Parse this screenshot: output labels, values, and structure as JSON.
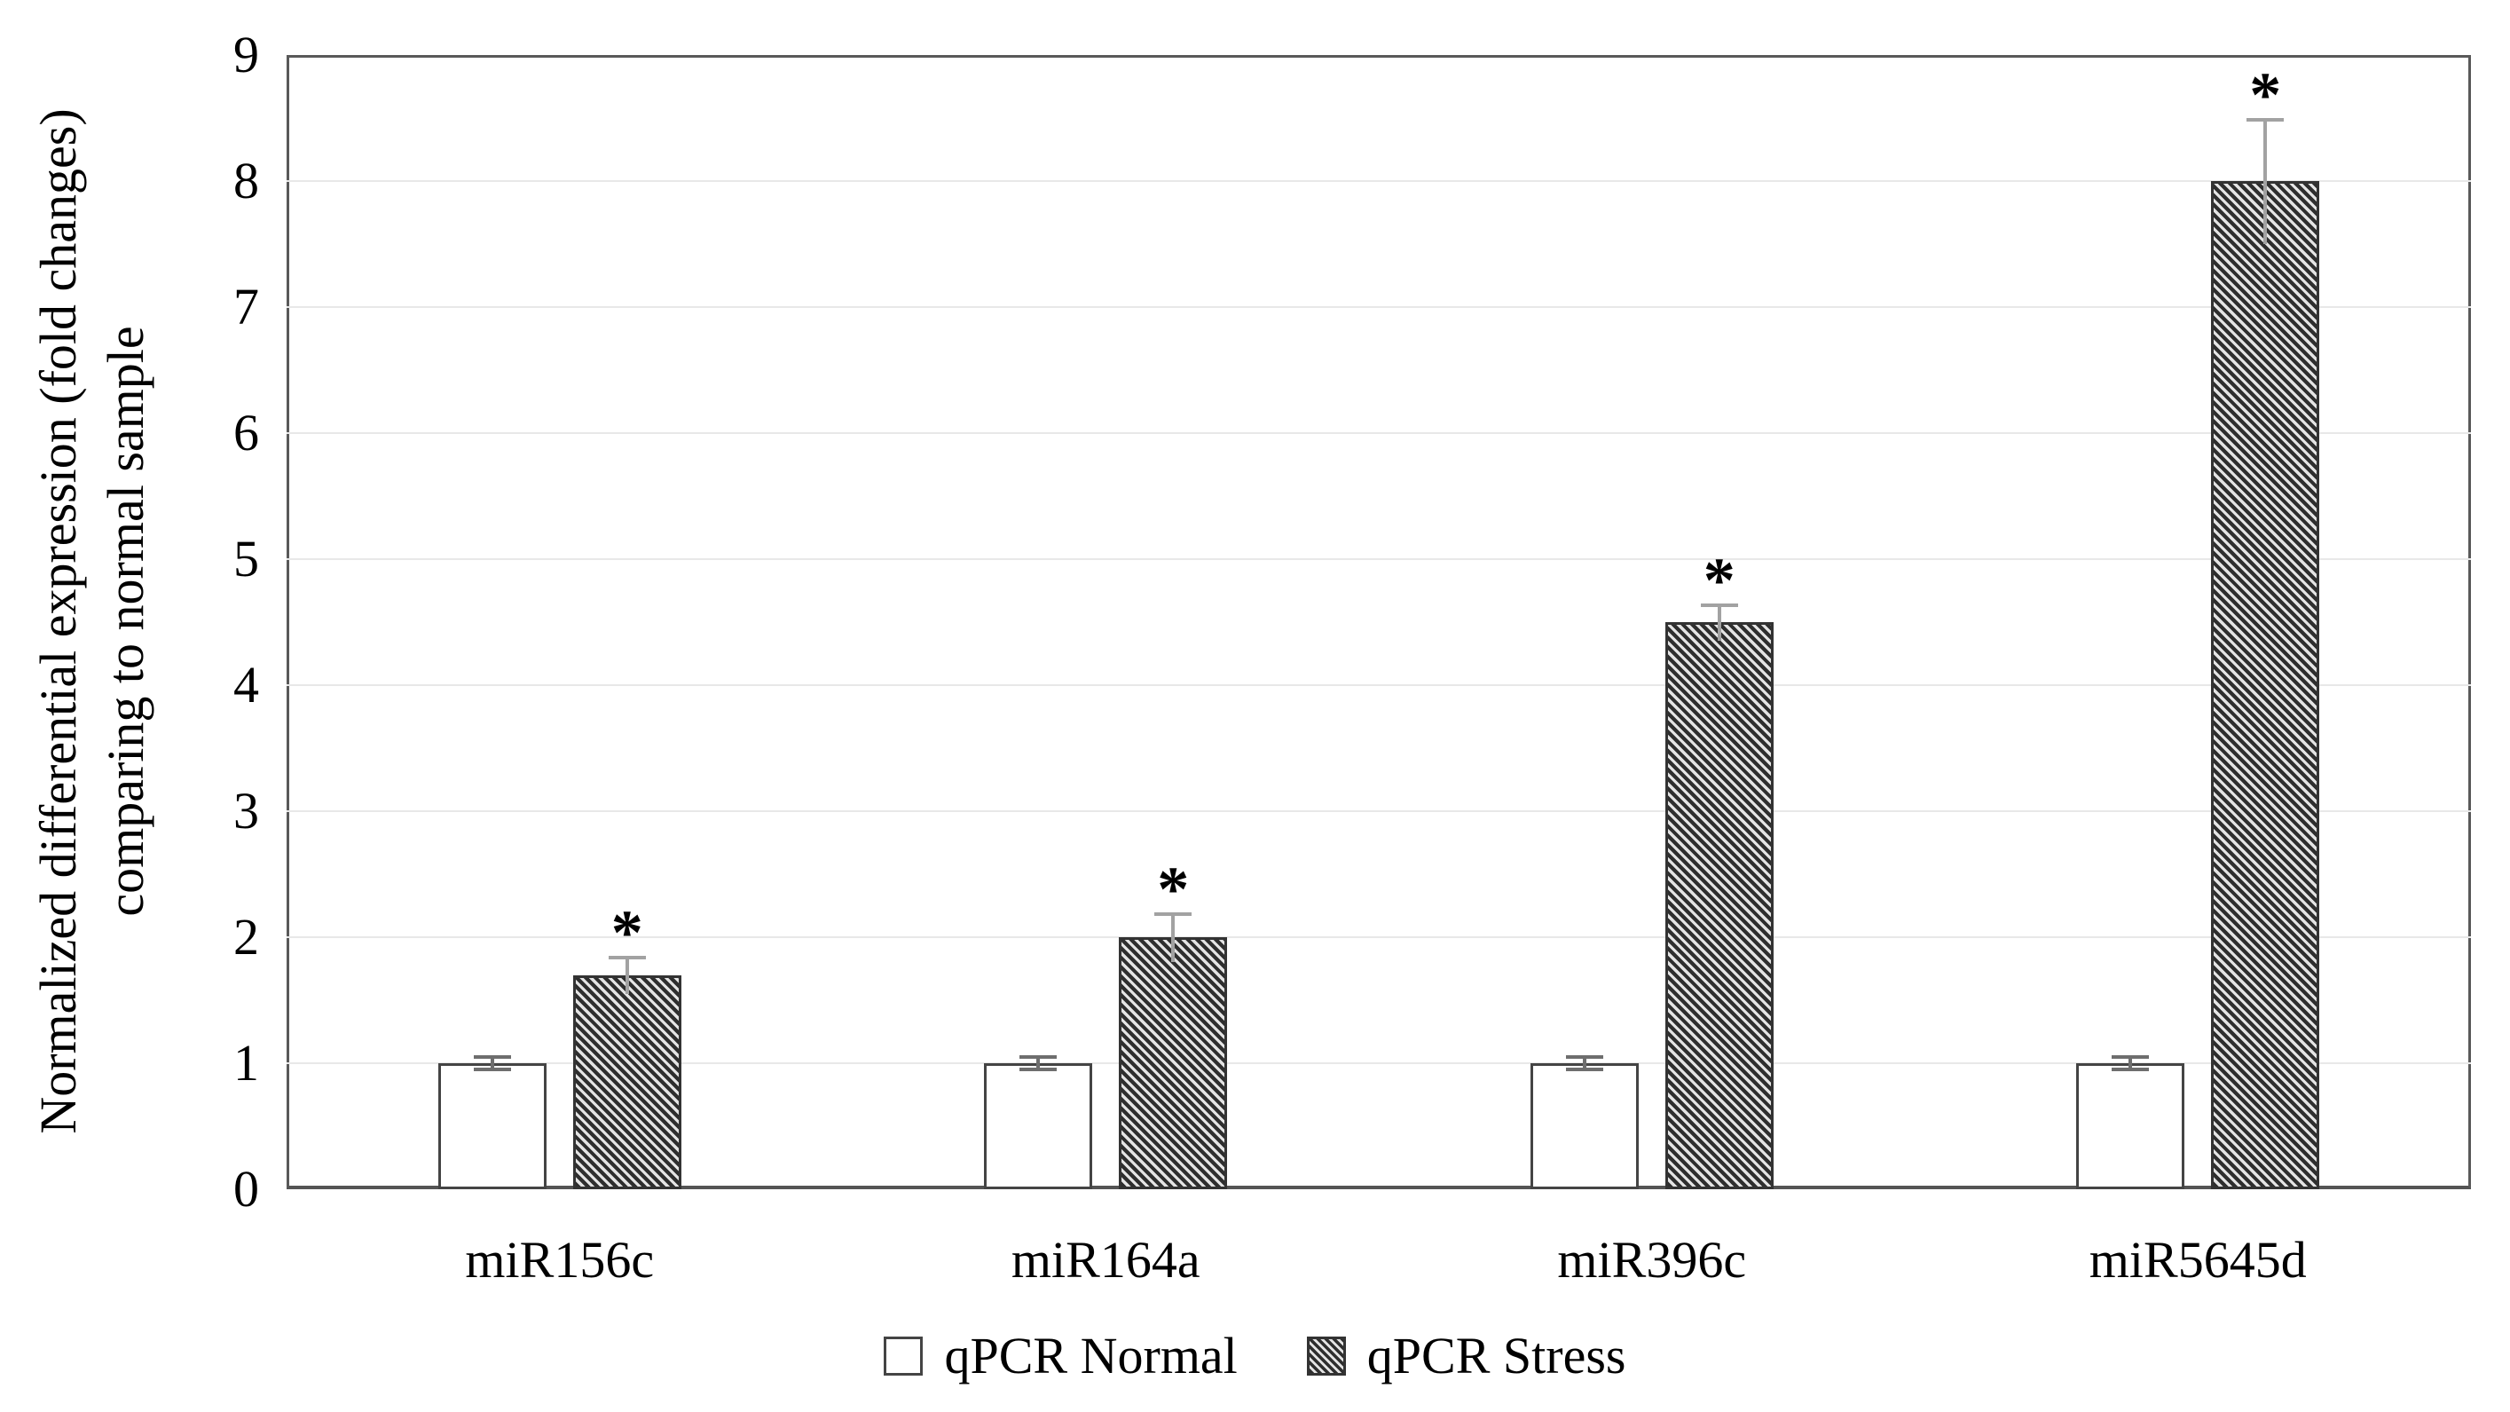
{
  "chart_data": {
    "type": "bar",
    "categories": [
      "miR156c",
      "miR164a",
      "miR396c",
      "miR5645d"
    ],
    "series": [
      {
        "name": "qPCR Normal",
        "values": [
          1.0,
          1.0,
          1.0,
          1.0
        ],
        "errors": [
          0.06,
          0.06,
          0.06,
          0.06
        ],
        "significance": [
          "",
          "",
          "",
          ""
        ],
        "fill": "white",
        "swatch": "legend-swatch-normal"
      },
      {
        "name": "qPCR Stress",
        "values": [
          1.7,
          2.0,
          4.5,
          8.0
        ],
        "errors": [
          0.15,
          0.2,
          0.15,
          0.5
        ],
        "significance": [
          "*",
          "*",
          "*",
          "*"
        ],
        "fill": "hatch-diagonal-down",
        "swatch": "legend-swatch-stress"
      }
    ],
    "ylabel_lines": [
      "Normalized differential expression (fold changes)",
      "comparing to normal sample"
    ],
    "xlabel": "",
    "title": "",
    "ylim": [
      0,
      9
    ],
    "yticks": [
      "0",
      "1",
      "2",
      "3",
      "4",
      "5",
      "6",
      "7",
      "8",
      "9"
    ],
    "grid": true,
    "legend_position": "bottom-center",
    "significance_symbol": "*"
  },
  "colors": {
    "background": "#ffffff",
    "text": "#000000",
    "plot_frame": "#595959",
    "gridline": "#e8e8e8",
    "bar_border": "#3d3d3d",
    "hatch_dark": "#2e2e2e",
    "hatch_light": "#e4e4e4",
    "error_bar_normal": "#6e6e6e",
    "error_bar_stress": "#a2a2a2"
  }
}
